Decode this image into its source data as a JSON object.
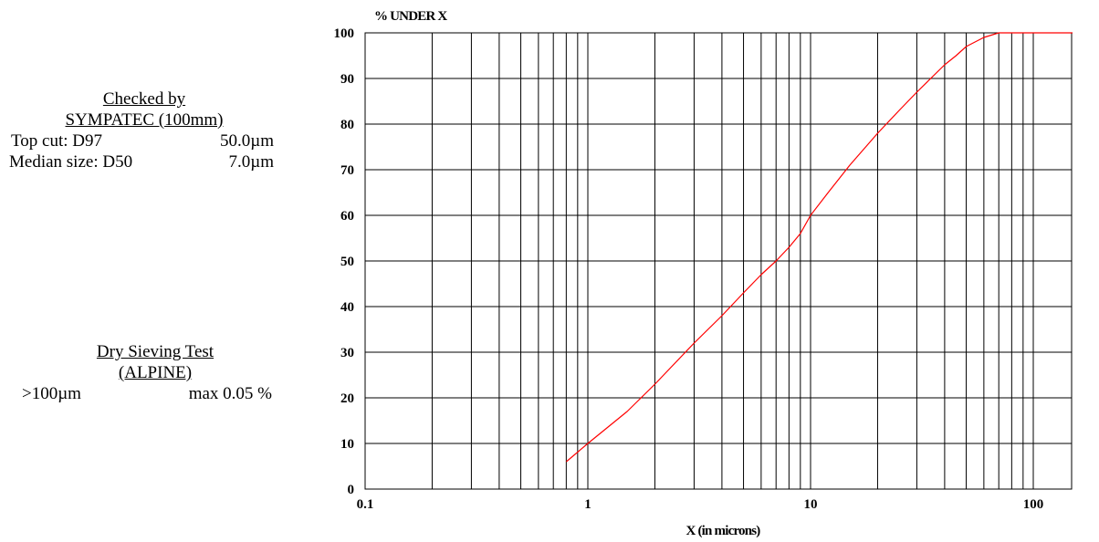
{
  "checked": {
    "heading": "Checked by",
    "instrument": "SYMPATEC (100mm)",
    "top_cut_label": "Top cut:  D97",
    "top_cut_value": "50.0µm",
    "median_label": "Median size:  D50",
    "median_value": "7.0µm"
  },
  "sieving": {
    "heading": "Dry Sieving Test",
    "instrument": "(ALPINE)",
    "size": ">100µm",
    "limit": "max 0.05 %"
  },
  "chart_data": {
    "type": "line",
    "title": "",
    "xlabel": "X (in microns)",
    "ylabel": "% UNDER X",
    "xscale": "log",
    "xlim": [
      0.1,
      200
    ],
    "ylim": [
      0,
      100
    ],
    "grid": true,
    "x_ticks": [
      "0.1",
      "1",
      "10",
      "100"
    ],
    "y_ticks": [
      "0",
      "10",
      "20",
      "30",
      "40",
      "50",
      "60",
      "70",
      "80",
      "90",
      "100"
    ],
    "series": [
      {
        "name": "",
        "color": "#ff0000",
        "x": [
          0.8,
          1.0,
          1.5,
          2.0,
          3.0,
          4.0,
          5.0,
          6.0,
          7.0,
          8.0,
          9.0,
          10.0,
          12.0,
          15.0,
          20.0,
          25.0,
          30.0,
          40.0,
          45.0,
          50.0,
          60.0,
          70.0,
          80.0,
          100.0,
          150.0
        ],
        "y": [
          6,
          10,
          17,
          23,
          32,
          38,
          43,
          47,
          50,
          53,
          56,
          60,
          65,
          71,
          78,
          83,
          87,
          93,
          95,
          97,
          99,
          100,
          100,
          100,
          100
        ]
      }
    ]
  }
}
